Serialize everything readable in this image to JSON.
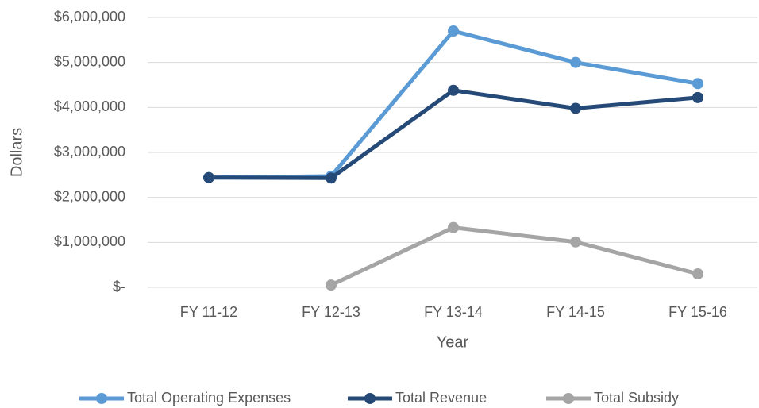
{
  "chart_data": {
    "type": "line",
    "x_label": "Year",
    "y_label": "Dollars",
    "categories": [
      "FY 11-12",
      "FY 12-13",
      "FY 13-14",
      "FY 14-15",
      "FY 15-16"
    ],
    "series": [
      {
        "name": "Total Operating Expenses",
        "color": "#5b9bd5",
        "values": [
          2440000,
          2470000,
          5700000,
          5000000,
          4530000
        ]
      },
      {
        "name": "Total Revenue",
        "color": "#264a78",
        "values": [
          2440000,
          2430000,
          4380000,
          3980000,
          4220000
        ]
      },
      {
        "name": "Total Subsidy",
        "color": "#a5a5a5",
        "values": [
          null,
          50000,
          1330000,
          1010000,
          300000
        ]
      }
    ],
    "ylim": [
      0,
      6000000
    ],
    "yticks": [
      {
        "value": 0,
        "label": "$-"
      },
      {
        "value": 1000000,
        "label": "$1,000,000"
      },
      {
        "value": 2000000,
        "label": "$2,000,000"
      },
      {
        "value": 3000000,
        "label": "$3,000,000"
      },
      {
        "value": 4000000,
        "label": "$4,000,000"
      },
      {
        "value": 5000000,
        "label": "$5,000,000"
      },
      {
        "value": 6000000,
        "label": "$6,000,000"
      }
    ],
    "grid": true,
    "legend": "bottom"
  }
}
